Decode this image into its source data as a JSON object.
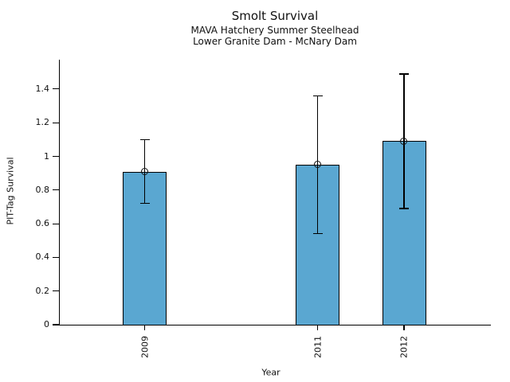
{
  "chart_data": {
    "type": "bar",
    "title": "Smolt Survival",
    "subtitle1": "MAVA Hatchery Summer Steelhead",
    "subtitle2": "Lower Granite Dam - McNary Dam",
    "xlabel": "Year",
    "ylabel": "PIT-Tag Survival",
    "categories": [
      "2009",
      "2011",
      "2012"
    ],
    "x": [
      2009,
      2011,
      2012
    ],
    "values": [
      0.91,
      0.95,
      1.09
    ],
    "error_low": [
      0.72,
      0.54,
      0.69
    ],
    "error_high": [
      1.1,
      1.36,
      1.49
    ],
    "ylim": [
      0,
      1.57
    ],
    "ytick_values": [
      0,
      0.2,
      0.4,
      0.6,
      0.8,
      1.0,
      1.2,
      1.4
    ],
    "ytick_labels": [
      "0",
      "0.2",
      "0.4",
      "0.6",
      "0.8",
      "1",
      "1.2",
      "1.4"
    ],
    "grid": false,
    "legend": "none",
    "marker": "open-circle",
    "bar_fill_color": "#5aa7d1",
    "bar_edge_color": "#000000",
    "axis_color": "#000000",
    "background_color": "#ffffff"
  }
}
